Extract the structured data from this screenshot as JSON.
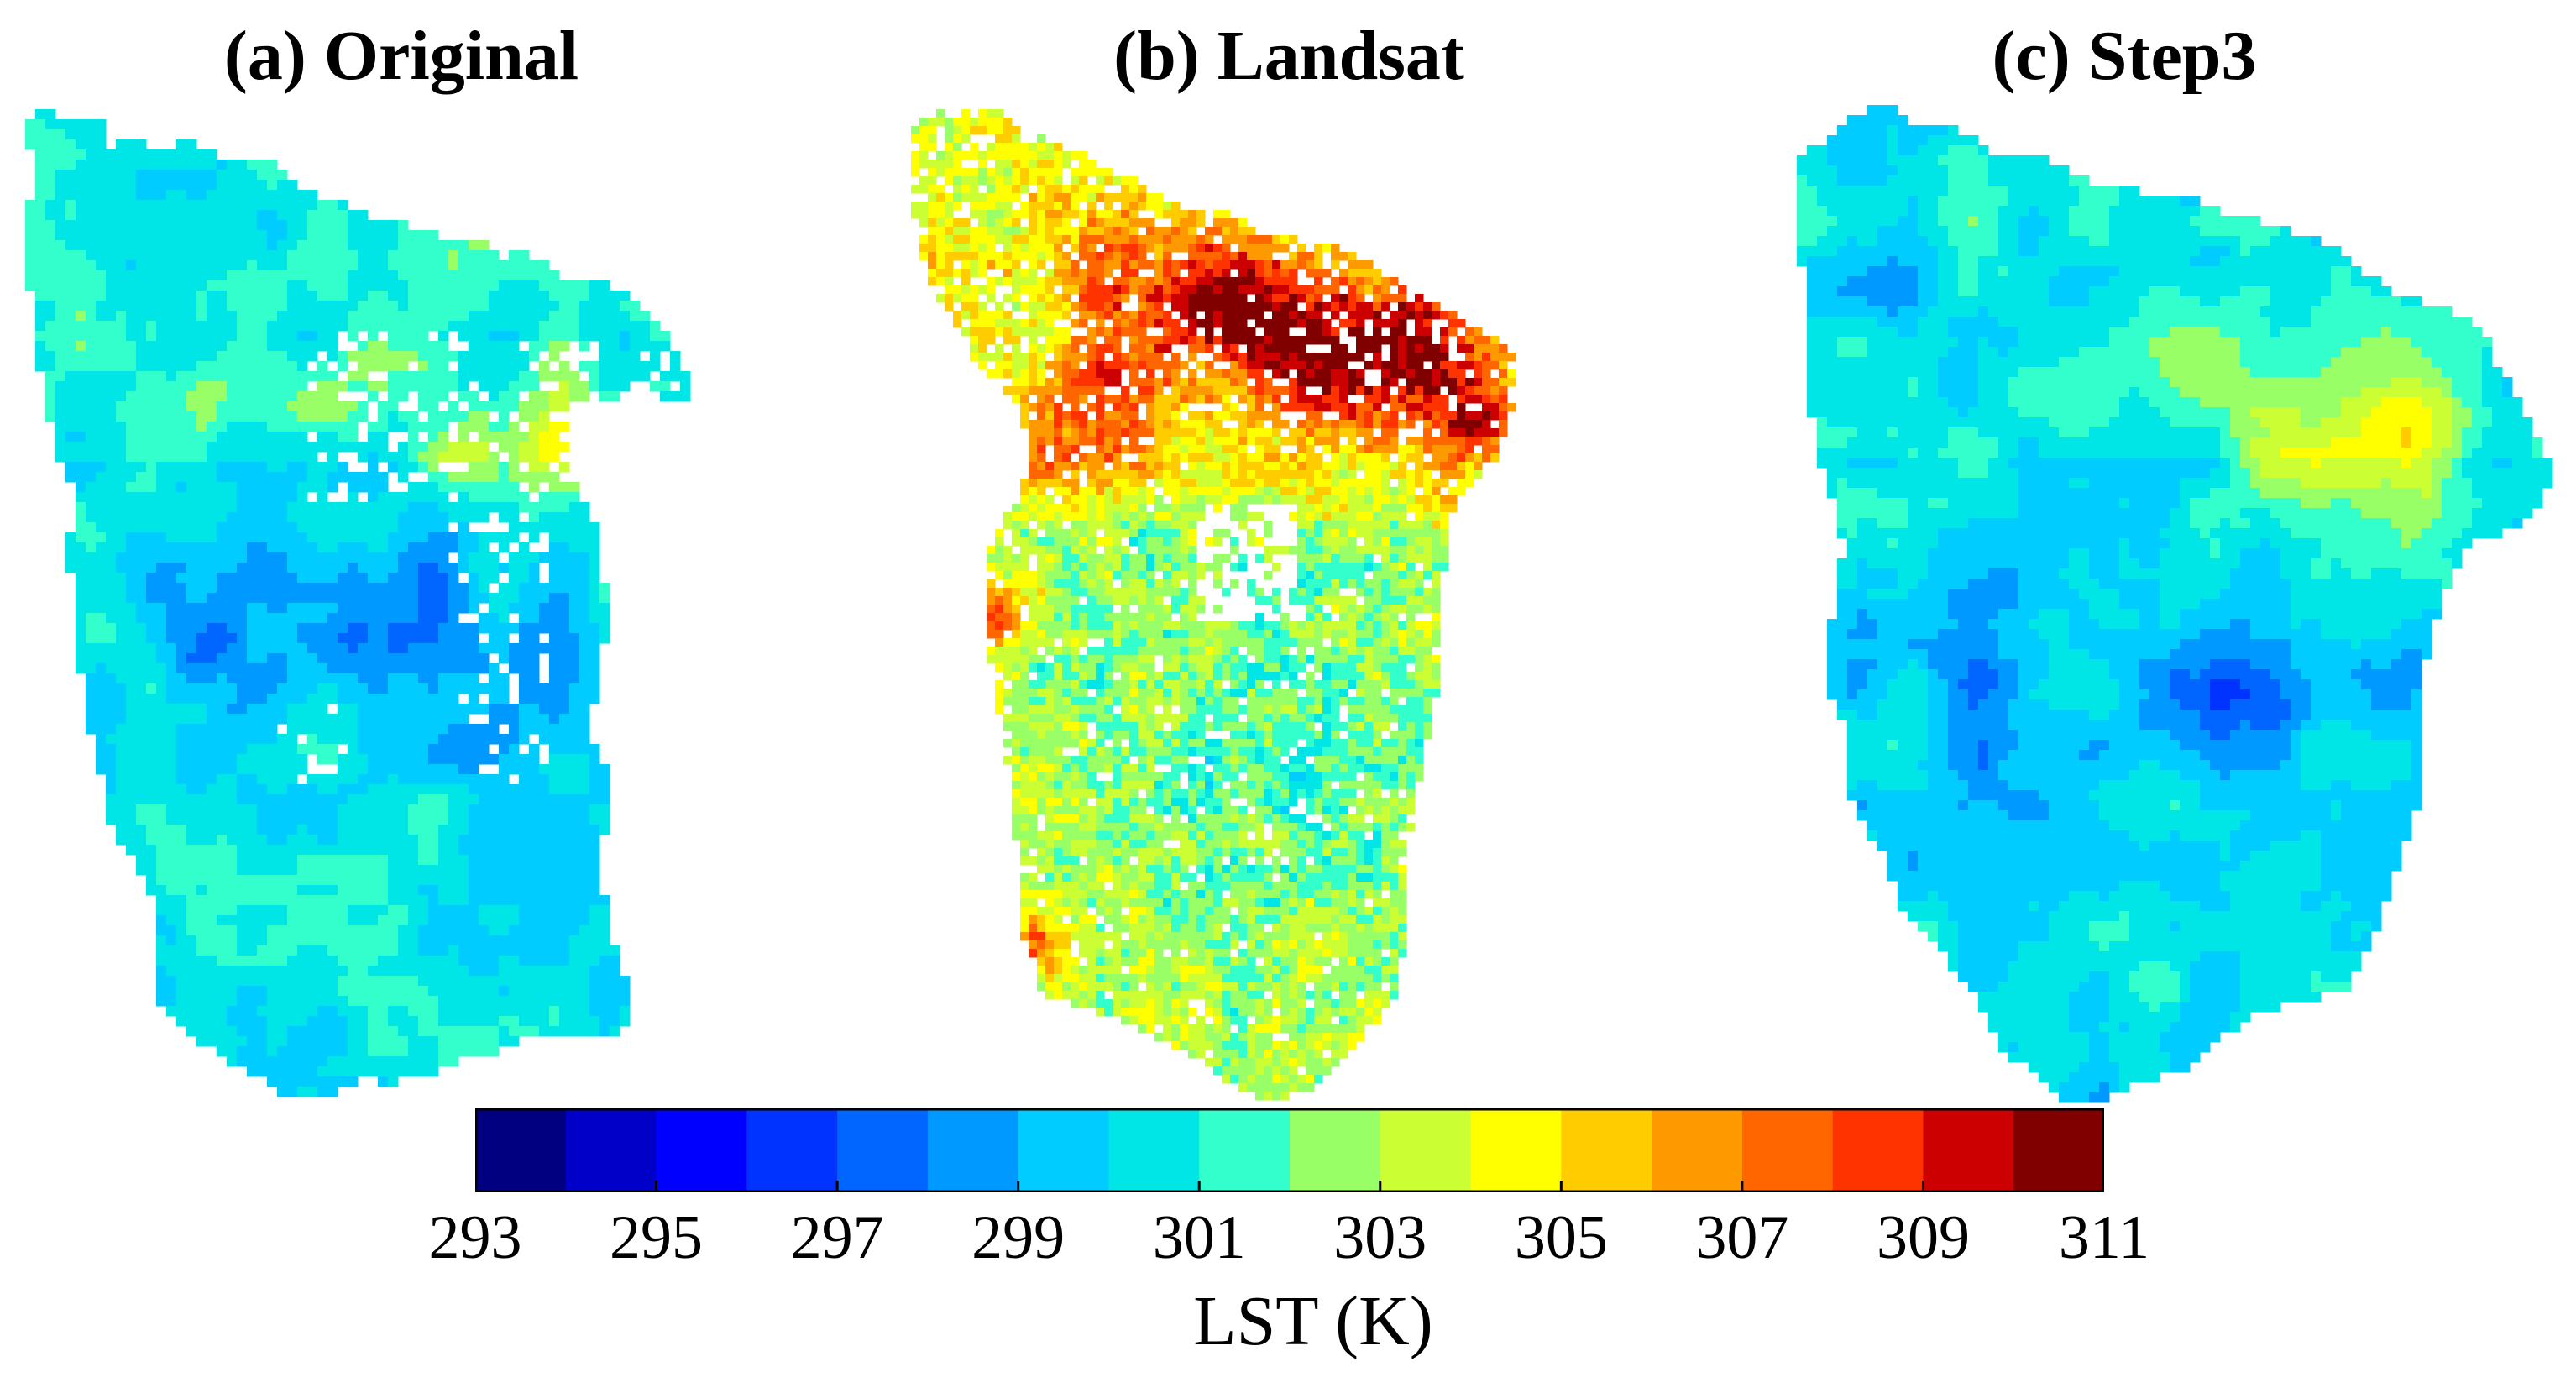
{
  "chart_data": {
    "type": "heatmap",
    "panels": [
      {
        "id": "a",
        "title": "(a) Original",
        "dominant_range_K": [
          298,
          303
        ],
        "hotspot_max_K": 305
      },
      {
        "id": "b",
        "title": "(b) Landsat",
        "dominant_range_K": [
          301,
          305
        ],
        "hotspot_max_K": 311
      },
      {
        "id": "c",
        "title": "(c) Step3",
        "dominant_range_K": [
          297,
          303
        ],
        "hotspot_max_K": 306
      }
    ],
    "colorbar": {
      "label": "LST (K)",
      "vmin": 293,
      "vmax": 311,
      "step": 1,
      "ticks": [
        293,
        295,
        297,
        299,
        301,
        303,
        305,
        307,
        309,
        311
      ],
      "tick_labels": [
        "293",
        "295",
        "297",
        "299",
        "301",
        "303",
        "305",
        "307",
        "309",
        "311"
      ],
      "colors": [
        "#000080",
        "#0000c8",
        "#0000ff",
        "#0033ff",
        "#0066ff",
        "#0099ff",
        "#00ccff",
        "#00e6e6",
        "#33ffcc",
        "#99ff66",
        "#ccff33",
        "#ffff00",
        "#ffcc00",
        "#ff9900",
        "#ff6600",
        "#ff3300",
        "#cc0000",
        "#800000"
      ]
    }
  }
}
